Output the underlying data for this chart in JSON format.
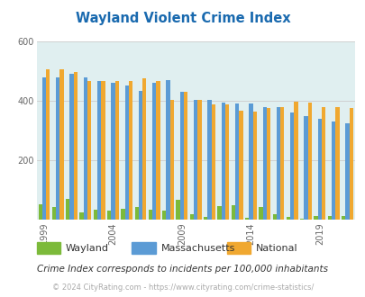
{
  "title": "Wayland Violent Crime Index",
  "subtitle": "Crime Index corresponds to incidents per 100,000 inhabitants",
  "footer": "© 2024 CityRating.com - https://www.cityrating.com/crime-statistics/",
  "years": [
    1999,
    2000,
    2001,
    2002,
    2003,
    2004,
    2005,
    2006,
    2007,
    2008,
    2009,
    2010,
    2011,
    2012,
    2013,
    2014,
    2015,
    2016,
    2017,
    2018,
    2019,
    2020,
    2021
  ],
  "wayland": [
    52,
    42,
    70,
    25,
    33,
    32,
    38,
    42,
    33,
    30,
    68,
    18,
    10,
    45,
    48,
    8,
    42,
    18,
    10,
    5,
    13,
    12,
    12
  ],
  "massachusetts": [
    478,
    478,
    492,
    478,
    467,
    462,
    453,
    433,
    462,
    470,
    430,
    405,
    405,
    395,
    390,
    390,
    380,
    380,
    360,
    350,
    340,
    330,
    325
  ],
  "national": [
    508,
    508,
    498,
    468,
    468,
    468,
    468,
    476,
    468,
    405,
    430,
    404,
    387,
    387,
    367,
    365,
    375,
    380,
    398,
    395,
    380,
    380,
    375
  ],
  "wayland_color": "#7cba3a",
  "mass_color": "#5b9bd5",
  "national_color": "#f0a830",
  "bg_color": "#e0eff0",
  "title_color": "#1a6aaf",
  "ylim": [
    0,
    600
  ],
  "yticks": [
    0,
    200,
    400,
    600
  ],
  "grid_color": "#cccccc",
  "subtitle_color": "#333333",
  "footer_color": "#aaaaaa"
}
